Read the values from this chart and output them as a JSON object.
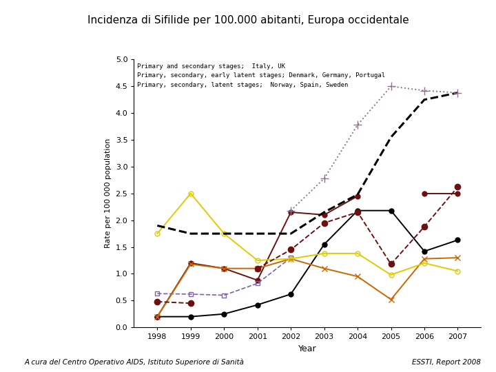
{
  "title": "Incidenza di Sifilide per 100.000 abitanti, Europa occidentale",
  "xlabel": "Year",
  "ylabel": "Rate per 100 000 population",
  "years": [
    1998,
    1999,
    2000,
    2001,
    2002,
    2003,
    2004,
    2005,
    2006,
    2007
  ],
  "series_order": [
    "Denmark",
    "Germany",
    "Italy",
    "Norway",
    "Portugal",
    "Spain",
    "Sweden",
    "UK"
  ],
  "series": {
    "Denmark": {
      "values": [
        0.2,
        0.2,
        0.25,
        0.42,
        0.62,
        1.55,
        2.18,
        2.18,
        1.42,
        1.63
      ],
      "color": "#000000",
      "linestyle": "-",
      "marker": "o",
      "ms": 5,
      "lw": 1.4,
      "mfc": "#000000",
      "mec": "#000000"
    },
    "Germany": {
      "values": [
        0.2,
        1.2,
        1.1,
        0.88,
        2.15,
        2.1,
        2.45,
        null,
        2.5,
        2.5
      ],
      "color": "#6B1010",
      "linestyle": "-",
      "marker": "o",
      "ms": 5,
      "lw": 1.4,
      "mfc": "#6B1010",
      "mec": "#6B1010"
    },
    "Italy": {
      "values": [
        0.63,
        0.62,
        0.6,
        0.82,
        1.3,
        null,
        null,
        null,
        null,
        null
      ],
      "color": "#8060A0",
      "linestyle": "--",
      "marker": "s",
      "ms": 4,
      "lw": 1.2,
      "mfc": "none",
      "mec": "#8060A0"
    },
    "Norway": {
      "values": [
        0.2,
        1.18,
        1.1,
        1.1,
        1.28,
        1.1,
        0.95,
        0.52,
        1.28,
        1.3
      ],
      "color": "#CC6600",
      "linestyle": "-",
      "marker": "x",
      "ms": 6,
      "lw": 1.4,
      "mfc": "#CC6600",
      "mec": "#CC6600"
    },
    "Portugal": {
      "values": [
        1.75,
        2.5,
        1.75,
        1.25,
        1.28,
        1.38,
        1.38,
        0.98,
        1.2,
        1.05
      ],
      "color": "#DDCC00",
      "linestyle": "-",
      "marker": "o",
      "ms": 5,
      "lw": 1.4,
      "mfc": "none",
      "mec": "#DDCC00"
    },
    "Spain": {
      "values": [
        1.9,
        1.75,
        1.75,
        1.75,
        1.75,
        2.15,
        2.48,
        3.55,
        4.25,
        4.38
      ],
      "color": "#000000",
      "linestyle": "--",
      "marker": null,
      "ms": 0,
      "lw": 2.2,
      "mfc": "#000000",
      "mec": "#000000"
    },
    "Sweden": {
      "values": [
        0.48,
        0.45,
        null,
        1.1,
        1.45,
        1.95,
        2.15,
        1.18,
        1.88,
        2.62
      ],
      "color": "#6B1010",
      "linestyle": "--",
      "marker": "o",
      "ms": 6,
      "lw": 1.4,
      "mfc": "#6B1010",
      "mec": "#6B1010"
    },
    "UK": {
      "values": [
        null,
        null,
        null,
        null,
        2.18,
        2.78,
        3.78,
        4.5,
        4.42,
        4.38
      ],
      "color": "#907090",
      "linestyle": ":",
      "marker": "+",
      "ms": 8,
      "lw": 1.4,
      "mfc": "#907090",
      "mec": "#907090"
    }
  },
  "annotation_lines": [
    "Primary and secondary stages;  Italy, UK",
    "Primary, secondary, early latent stages; Denmark, Germany, Portugal",
    "Primary, secondary, latent stages;  Norway, Spain, Sweden"
  ],
  "ylim": [
    0.0,
    5.0
  ],
  "yticks": [
    0.0,
    0.5,
    1.0,
    1.5,
    2.0,
    2.5,
    3.0,
    3.5,
    4.0,
    4.5,
    5.0
  ],
  "footer_left": "A cura del Centro Operativo AIDS, Istituto Superiore di Sanità",
  "footer_right": "ESSTI, Report 2008",
  "bg_color": "#ffffff"
}
